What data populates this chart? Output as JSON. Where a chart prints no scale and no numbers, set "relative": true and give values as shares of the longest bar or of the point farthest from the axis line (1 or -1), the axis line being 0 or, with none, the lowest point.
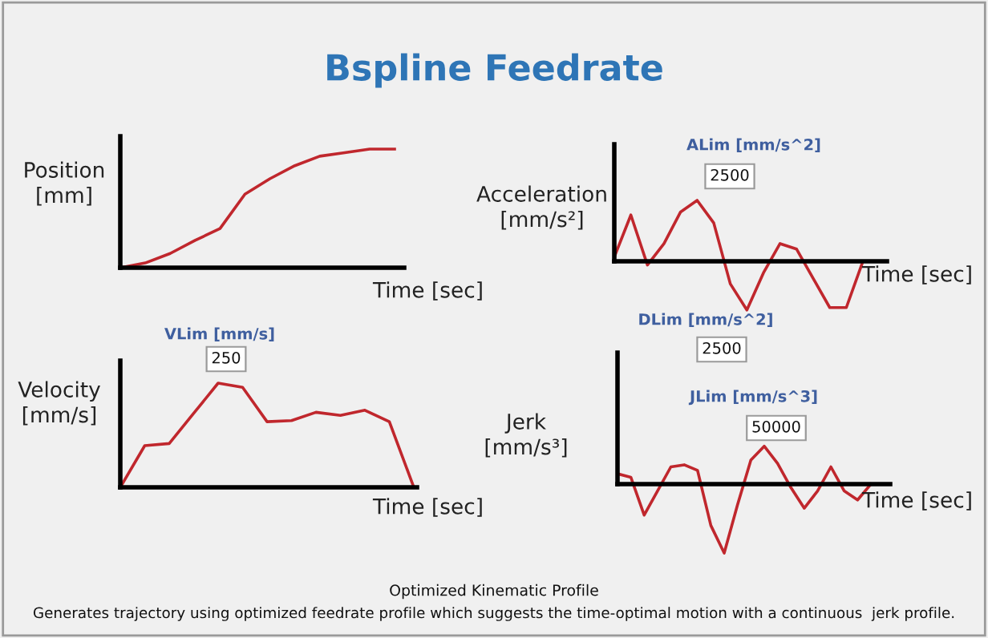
{
  "chart_data": [
    {
      "type": "line",
      "relative": true,
      "title": "Bspline Feedrate",
      "xlabel": "Time [sec]",
      "ylabel": "Position\n[mm]",
      "categories": [
        null,
        null,
        null,
        null,
        null,
        null,
        null,
        null,
        null,
        null,
        null,
        null
      ],
      "series": [
        {
          "color": "#c0272d",
          "values": [
            0,
            0.04,
            0.12,
            0.23,
            0.33,
            0.62,
            0.75,
            0.86,
            0.94,
            0.97,
            1.0,
            1.0
          ]
        }
      ]
    },
    {
      "type": "line",
      "relative": true,
      "xlabel": "Time [sec]",
      "ylabel": "Velocity\n[mm/s]",
      "annotations": [
        "VLim [mm/s]",
        "250"
      ],
      "categories": [
        null,
        null,
        null,
        null,
        null,
        null,
        null,
        null,
        null,
        null,
        null,
        null,
        null
      ],
      "series": [
        {
          "color": "#c0272d",
          "values": [
            0,
            0.4,
            0.42,
            0.71,
            1.0,
            0.96,
            0.63,
            0.64,
            0.72,
            0.69,
            0.74,
            0.63,
            0
          ]
        }
      ]
    },
    {
      "type": "line",
      "relative": true,
      "xlabel": "Time [sec]",
      "ylabel": "Acceleration\n[mm/s²]",
      "annotations": [
        "ALim [mm/s^2]",
        "2500",
        "DLim [mm/s^2]",
        "2500"
      ],
      "categories": [
        null,
        null,
        null,
        null,
        null,
        null,
        null,
        null,
        null,
        null,
        null,
        null,
        null,
        null,
        null,
        null
      ],
      "series": [
        {
          "color": "#c0272d",
          "values": [
            0.07,
            0.76,
            -0.06,
            0.29,
            0.81,
            1.0,
            0.63,
            -0.37,
            -0.8,
            -0.19,
            0.29,
            0.2,
            -0.28,
            -0.76,
            -0.76,
            0
          ]
        }
      ]
    },
    {
      "type": "line",
      "relative": true,
      "xlabel": "Time [sec]",
      "ylabel": "Jerk\n[mm/s³]",
      "annotations": [
        "JLim [mm/s^3]",
        "50000",
        "Optimized Kinematic Profile",
        "Generates trajectory using optimized feedrate profile which suggests the time-optimal motion with a continuous  jerk profile."
      ],
      "categories": [
        null,
        null,
        null,
        null,
        null,
        null,
        null,
        null,
        null,
        null,
        null,
        null,
        null,
        null,
        null,
        null,
        null,
        null,
        null,
        null
      ],
      "series": [
        {
          "color": "#c0272d",
          "values": [
            0.15,
            0.1,
            -0.45,
            -0.1,
            0.25,
            0.28,
            0.2,
            -0.6,
            -1.0,
            -0.3,
            0.35,
            0.55,
            0.3,
            -0.05,
            -0.35,
            -0.1,
            0.25,
            -0.1,
            -0.23,
            0
          ]
        }
      ]
    }
  ]
}
